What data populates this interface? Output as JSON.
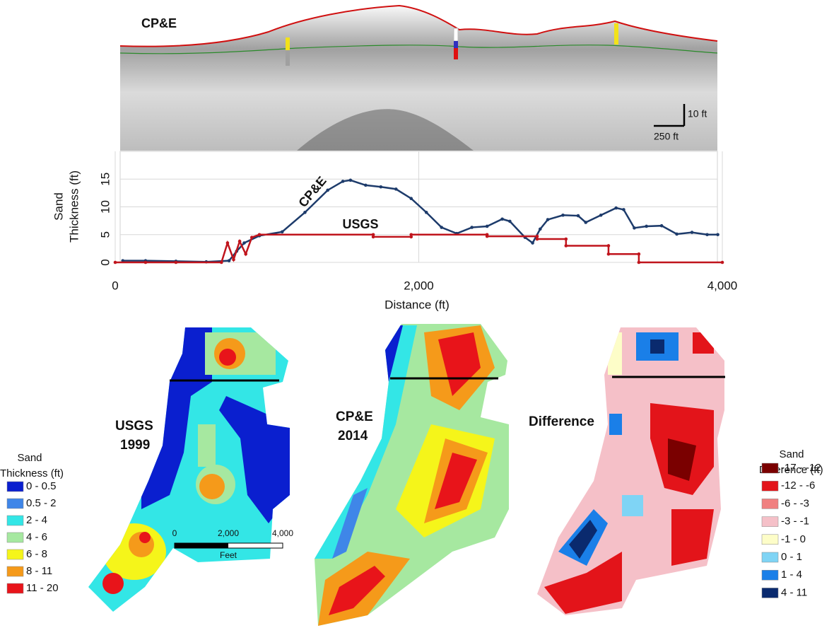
{
  "profile": {
    "label": "CP&E",
    "vertical_scale": "10 ft",
    "horizontal_scale": "250 ft"
  },
  "chart_data": {
    "type": "line",
    "ylabel": [
      "Sand",
      "Thickness (ft)"
    ],
    "xlabel": "Distance (ft)",
    "xlim": [
      0,
      4000
    ],
    "xticks": [
      0,
      {
        "value": 2000,
        "label": "2,000"
      },
      {
        "value": 4000,
        "label": "4,000"
      }
    ],
    "ylim": [
      0,
      20
    ],
    "yticks": [
      0,
      5,
      10,
      15
    ],
    "grid": true,
    "series": [
      {
        "name": "CP&E",
        "color": "#1d3b6b",
        "x": [
          50,
          200,
          400,
          600,
          750,
          800,
          850,
          950,
          1100,
          1250,
          1400,
          1500,
          1550,
          1650,
          1750,
          1850,
          1950,
          2050,
          2150,
          2250,
          2350,
          2450,
          2550,
          2600,
          2700,
          2750,
          2800,
          2850,
          2950,
          3050,
          3100,
          3200,
          3300,
          3350,
          3420,
          3500,
          3600,
          3700,
          3800,
          3900,
          3970
        ],
        "values": [
          0.3,
          0.3,
          0.2,
          0.1,
          0.3,
          2,
          3.5,
          4.8,
          5.5,
          9,
          13,
          14.6,
          14.8,
          13.9,
          13.6,
          13.2,
          11.5,
          9,
          6.3,
          5.2,
          6.3,
          6.5,
          7.8,
          7.4,
          4.5,
          3.5,
          6,
          7.7,
          8.5,
          8.4,
          7.2,
          8.5,
          9.8,
          9.5,
          6.2,
          6.5,
          6.6,
          5.1,
          5.4,
          5,
          5
        ]
      },
      {
        "name": "USGS",
        "color": "#c0141c",
        "x": [
          0,
          200,
          400,
          700,
          740,
          780,
          820,
          860,
          900,
          950,
          1700,
          1700,
          1950,
          1950,
          2450,
          2450,
          2780,
          2780,
          2970,
          2970,
          3250,
          3250,
          3450,
          3450,
          4000
        ],
        "values": [
          0,
          0,
          0,
          0,
          3.5,
          0.5,
          3.8,
          1.5,
          4.5,
          5,
          5,
          4.6,
          4.6,
          5,
          5,
          4.7,
          4.7,
          4.2,
          4.2,
          3,
          3,
          1.5,
          1.5,
          0,
          0
        ]
      }
    ]
  },
  "maps": [
    {
      "label": [
        "USGS",
        "1999"
      ]
    },
    {
      "label": [
        "CP&E",
        "2014"
      ]
    },
    {
      "label": [
        "Difference"
      ]
    }
  ],
  "scale_bar": {
    "labels": [
      "0",
      "2,000",
      "4,000"
    ],
    "unit": "Feet"
  },
  "legends": [
    {
      "title": [
        "Sand",
        "Thickness (ft)"
      ],
      "items": [
        {
          "label": "0 - 0.5",
          "color": "#0a1fcf"
        },
        {
          "label": "0.5 - 2",
          "color": "#3f86e8"
        },
        {
          "label": "2 - 4",
          "color": "#33e6e6"
        },
        {
          "label": "4 - 6",
          "color": "#a6e8a0"
        },
        {
          "label": "6 - 8",
          "color": "#f5f51a"
        },
        {
          "label": "8 - 11",
          "color": "#f59a1a"
        },
        {
          "label": "11 - 20",
          "color": "#e8141a"
        }
      ]
    },
    {
      "title": [
        "Sand",
        "Difference (ft)"
      ],
      "items": [
        {
          "label": "-17 - -12",
          "color": "#7a0000"
        },
        {
          "label": "-12 - -6",
          "color": "#e3141a"
        },
        {
          "label": "-6 - -3",
          "color": "#f08080"
        },
        {
          "label": "-3 - -1",
          "color": "#f5c0c8"
        },
        {
          "label": "-1 - 0",
          "color": "#fdfdc8"
        },
        {
          "label": "0 - 1",
          "color": "#7fd4f5"
        },
        {
          "label": "1 - 4",
          "color": "#1a7fe8"
        },
        {
          "label": "4 - 11",
          "color": "#0a2a6e"
        }
      ]
    }
  ]
}
